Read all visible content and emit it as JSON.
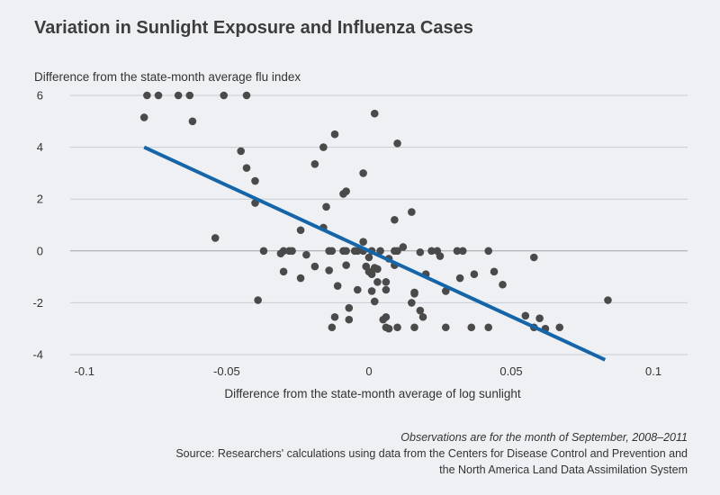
{
  "title": "Variation in Sunlight Exposure and Influenza Cases",
  "footer": {
    "note": "Observations are for the month of September, 2008–2011",
    "source_line1": "Source: Researchers' calculations using data from the Centers for Disease Control and Prevention and",
    "source_line2": "the North America Land Data Assimilation System"
  },
  "colors": {
    "background": "#eef0f3",
    "points": "#4a4a4a",
    "fit_line": "#1565a8",
    "grid": "#c8ccd2",
    "zero_line": "#9aa0a6"
  },
  "chart_data": {
    "type": "scatter",
    "title": "Variation in Sunlight Exposure and Influenza Cases",
    "xlabel": "Difference from the state-month average of log sunlight",
    "ylabel": "Difference from the state-month average flu index",
    "xlim": [
      -0.105,
      0.112
    ],
    "ylim": [
      -4,
      6
    ],
    "xticks": [
      -0.1,
      -0.05,
      0,
      0.05,
      0.1
    ],
    "xtick_labels": [
      "-0.1",
      "-0.05",
      "0",
      "0.05",
      "0.1"
    ],
    "yticks": [
      -4,
      -2,
      0,
      2,
      4,
      6
    ],
    "ytick_labels": [
      "-4",
      "-2",
      "0",
      "2",
      "4",
      "6"
    ],
    "grid": "horizontal",
    "fit_line": {
      "x": [
        -0.079,
        0.083
      ],
      "y": [
        4.0,
        -4.2
      ]
    },
    "points": [
      [
        -0.078,
        6.0
      ],
      [
        -0.074,
        6.0
      ],
      [
        -0.067,
        6.0
      ],
      [
        -0.063,
        6.0
      ],
      [
        -0.051,
        6.0
      ],
      [
        -0.043,
        6.0
      ],
      [
        -0.079,
        5.15
      ],
      [
        -0.062,
        5.0
      ],
      [
        0.002,
        5.3
      ],
      [
        -0.012,
        4.5
      ],
      [
        -0.016,
        4.0
      ],
      [
        0.01,
        4.15
      ],
      [
        -0.045,
        3.85
      ],
      [
        -0.043,
        3.2
      ],
      [
        -0.019,
        3.35
      ],
      [
        -0.002,
        3.0
      ],
      [
        -0.04,
        2.7
      ],
      [
        -0.008,
        2.3
      ],
      [
        -0.009,
        2.2
      ],
      [
        -0.04,
        1.85
      ],
      [
        -0.015,
        1.7
      ],
      [
        0.015,
        1.5
      ],
      [
        0.009,
        1.2
      ],
      [
        -0.054,
        0.5
      ],
      [
        -0.016,
        0.9
      ],
      [
        -0.024,
        0.8
      ],
      [
        -0.002,
        0.35
      ],
      [
        -0.037,
        0.0
      ],
      [
        -0.03,
        0.0
      ],
      [
        -0.028,
        0.0
      ],
      [
        -0.027,
        0.0
      ],
      [
        -0.014,
        0.0
      ],
      [
        -0.013,
        0.0
      ],
      [
        -0.009,
        0.0
      ],
      [
        -0.008,
        0.0
      ],
      [
        -0.005,
        0.0
      ],
      [
        -0.004,
        0.0
      ],
      [
        -0.002,
        0.0
      ],
      [
        0.001,
        0.0
      ],
      [
        0.004,
        0.0
      ],
      [
        0.009,
        0.0
      ],
      [
        0.01,
        0.0
      ],
      [
        0.012,
        0.15
      ],
      [
        0.018,
        -0.05
      ],
      [
        0.022,
        0.0
      ],
      [
        0.024,
        0.0
      ],
      [
        0.031,
        0.0
      ],
      [
        0.033,
        0.0
      ],
      [
        0.042,
        0.0
      ],
      [
        -0.031,
        -0.1
      ],
      [
        -0.022,
        -0.15
      ],
      [
        0.0,
        -0.25
      ],
      [
        0.007,
        -0.3
      ],
      [
        0.025,
        -0.2
      ],
      [
        0.058,
        -0.25
      ],
      [
        -0.008,
        -0.55
      ],
      [
        -0.001,
        -0.6
      ],
      [
        0.002,
        -0.65
      ],
      [
        0.003,
        -0.7
      ],
      [
        -0.019,
        -0.6
      ],
      [
        0.009,
        -0.55
      ],
      [
        -0.03,
        -0.8
      ],
      [
        -0.014,
        -0.75
      ],
      [
        0.0,
        -0.8
      ],
      [
        0.001,
        -0.9
      ],
      [
        0.02,
        -0.9
      ],
      [
        0.037,
        -0.9
      ],
      [
        0.044,
        -0.8
      ],
      [
        -0.024,
        -1.05
      ],
      [
        0.003,
        -1.2
      ],
      [
        0.006,
        -1.2
      ],
      [
        0.032,
        -1.05
      ],
      [
        0.047,
        -1.3
      ],
      [
        -0.011,
        -1.35
      ],
      [
        -0.004,
        -1.5
      ],
      [
        0.001,
        -1.55
      ],
      [
        0.006,
        -1.5
      ],
      [
        0.016,
        -1.6
      ],
      [
        0.027,
        -1.55
      ],
      [
        -0.039,
        -1.9
      ],
      [
        0.002,
        -1.95
      ],
      [
        0.015,
        -2.0
      ],
      [
        0.016,
        -1.65
      ],
      [
        0.084,
        -1.9
      ],
      [
        -0.007,
        -2.2
      ],
      [
        0.018,
        -2.3
      ],
      [
        -0.012,
        -2.55
      ],
      [
        -0.007,
        -2.65
      ],
      [
        0.006,
        -2.55
      ],
      [
        0.005,
        -2.65
      ],
      [
        0.019,
        -2.55
      ],
      [
        0.055,
        -2.5
      ],
      [
        0.06,
        -2.6
      ],
      [
        -0.013,
        -2.95
      ],
      [
        0.006,
        -2.95
      ],
      [
        0.007,
        -3.0
      ],
      [
        0.01,
        -2.95
      ],
      [
        0.016,
        -2.95
      ],
      [
        0.027,
        -2.95
      ],
      [
        0.036,
        -2.95
      ],
      [
        0.042,
        -2.95
      ],
      [
        0.058,
        -2.95
      ],
      [
        0.062,
        -3.0
      ],
      [
        0.067,
        -2.95
      ]
    ]
  }
}
